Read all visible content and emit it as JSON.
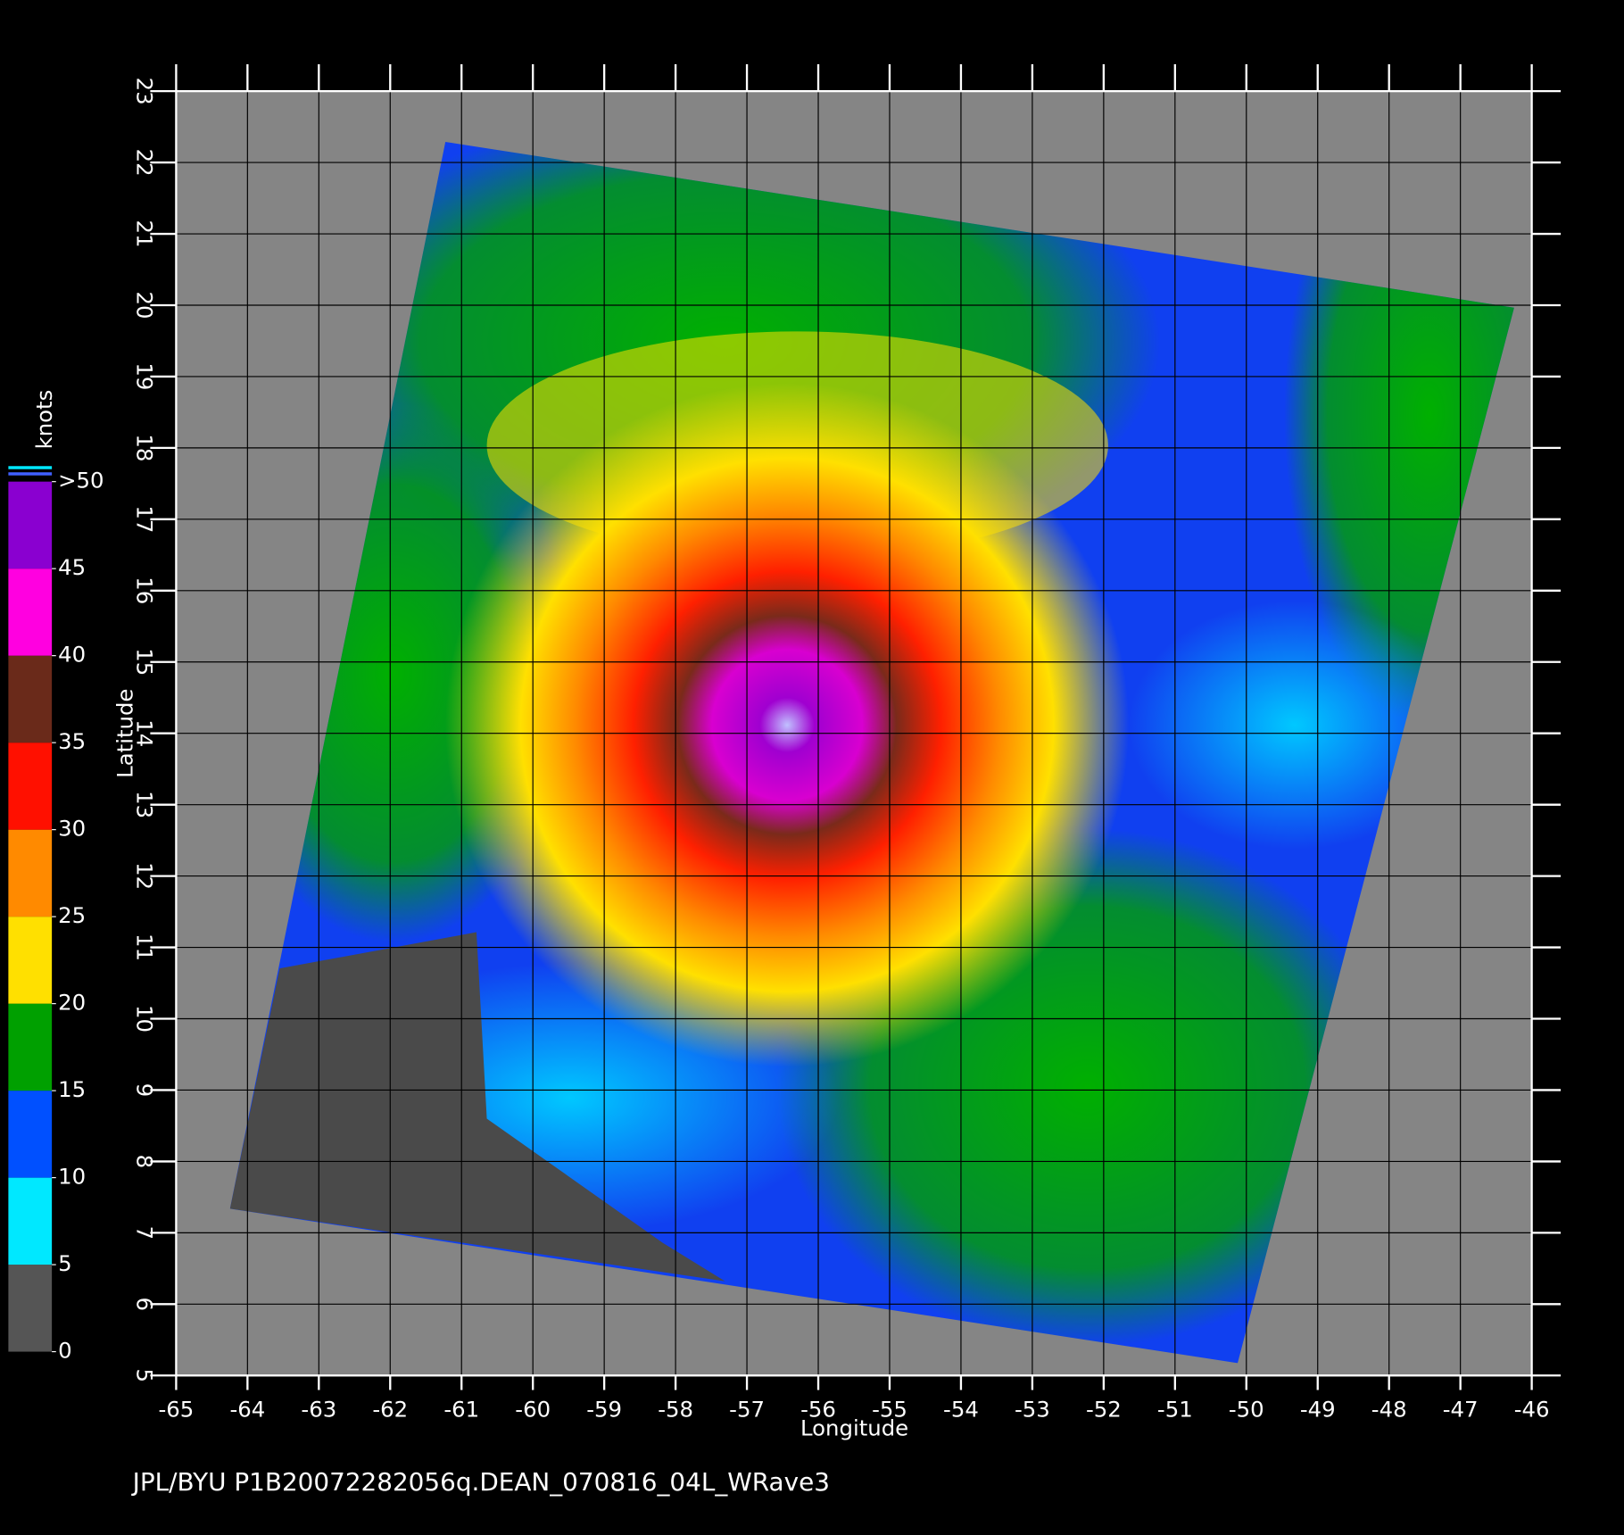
{
  "chart_data": {
    "type": "map",
    "x_label": "Longitude",
    "y_label": "Latitude",
    "xlim": [
      -65,
      -46
    ],
    "ylim": [
      5,
      23
    ],
    "xticks": [
      -65,
      -64,
      -63,
      -62,
      -61,
      -60,
      -59,
      -58,
      -57,
      -56,
      -55,
      -54,
      -53,
      -52,
      -51,
      -50,
      -49,
      -48,
      -47,
      -46
    ],
    "yticks": [
      5,
      6,
      7,
      8,
      9,
      10,
      11,
      12,
      13,
      14,
      15,
      16,
      17,
      18,
      19,
      20,
      21,
      22,
      23
    ],
    "grid": true,
    "colorbar": {
      "label": "knots",
      "lim": [
        0,
        50
      ],
      "ticks": [
        0,
        5,
        10,
        15,
        20,
        25,
        30,
        35,
        40,
        45,
        {
          "value": 50,
          "label": ">50"
        }
      ],
      "colors": [
        "#555555",
        "#00e8ff",
        "#0050ff",
        "#00a000",
        "#ffe000",
        "#ff8a00",
        "#ff1000",
        "#6a2a1a",
        "#ff00e0",
        "#8a00d0"
      ]
    }
  },
  "footer": "JPL/BYU  P1B20072282056q.DEAN_070816_04L_WRave3"
}
